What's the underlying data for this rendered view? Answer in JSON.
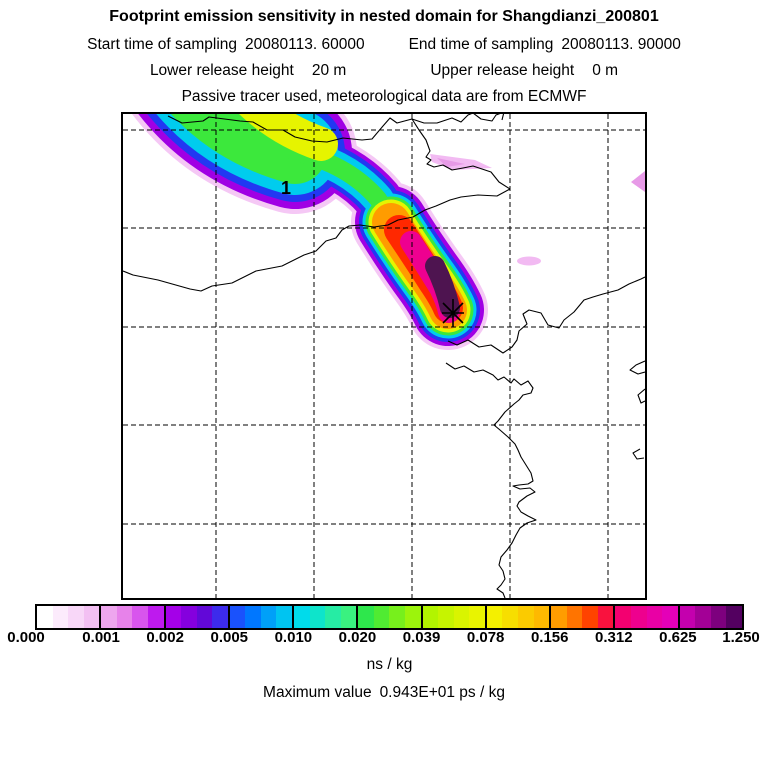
{
  "header": {
    "title": "Footprint emission sensitivity in nested domain for Shangdianzi_200801",
    "sampling": {
      "start_label": "Start time of sampling",
      "start_value": "20080113. 60000",
      "end_label": "End time of sampling",
      "end_value": "20080113. 90000"
    },
    "release": {
      "lower_label": "Lower release height",
      "lower_value": "20 m",
      "upper_label": "Upper release height",
      "upper_value": "0 m"
    },
    "tracer_note": "Passive tracer used, meteorological data are from ECMWF"
  },
  "map": {
    "release_point_label": "1"
  },
  "colorbar": {
    "tick_labels": [
      "0.000",
      "0.001",
      "0.002",
      "0.005",
      "0.010",
      "0.020",
      "0.039",
      "0.078",
      "0.156",
      "0.312",
      "0.625",
      "1.250"
    ],
    "units": "ns / kg",
    "cells": [
      "#FFFFFF",
      "#FCEBFC",
      "#F8D7F8",
      "#F3C0F3",
      "#EEA6EE",
      "#E782EA",
      "#D855ED",
      "#BE1AEE",
      "#A400E8",
      "#8500DE",
      "#6208D8",
      "#3D2BEC",
      "#1A52FC",
      "#0077FF",
      "#00A0F8",
      "#00C4F1",
      "#00DBEB",
      "#0EE4CB",
      "#26ECA4",
      "#3AF180",
      "#2EE74C",
      "#50EB32",
      "#77F01C",
      "#9CF40C",
      "#B2F400",
      "#C6F400",
      "#D9F400",
      "#E9F400",
      "#F4F000",
      "#F7DE00",
      "#FBCB00",
      "#FEB900",
      "#FF9D00",
      "#FF7400",
      "#FF4300",
      "#F9123E",
      "#F30070",
      "#EE008E",
      "#E900A5",
      "#E400B8",
      "#C400AE",
      "#A30096",
      "#7D007E",
      "#530060"
    ]
  },
  "footer": {
    "max_label": "Maximum value",
    "max_value": "0.943E+01 ps / kg"
  },
  "map_colors": {
    "fringe": "#F5C8F5",
    "purple": "#A000E4",
    "blue": "#2238F2",
    "cyan": "#00CCEE",
    "green": "#3CE83C",
    "yellow": "#E6F400",
    "orange": "#FF9C00",
    "red": "#FF2800",
    "magenta": "#EE0090",
    "core": "#4E1450",
    "patch_pink": "#F2BAF2",
    "patch_pink_dark": "#E79AE7"
  },
  "chart_data": {
    "type": "heatmap",
    "title": "Footprint emission sensitivity in nested domain for Shangdianzi_200801",
    "station": "Shangdianzi_200801",
    "sampling_start": "20080113. 60000",
    "sampling_end": "20080113. 90000",
    "lower_release_height": "20 m",
    "upper_release_height": "0 m",
    "meteorology_note": "Passive tracer used, meteorological data are from ECMWF",
    "colorbar_tick_values": [
      0.0,
      0.001,
      0.002,
      0.005,
      0.01,
      0.02,
      0.039,
      0.078,
      0.156,
      0.312,
      0.625,
      1.25
    ],
    "units": "ns / kg",
    "maximum_value": "0.943E+01 ps / kg",
    "legend_position": "bottom",
    "grid": "dashed graticule, 5 vertical x 5 horizontal lines",
    "features": [
      "emission sensitivity plume extending from northwest corner to receptor in map center",
      "receptor marked with black asterisk star",
      "release point labeled 1",
      "coastlines and borders of NE China / Bohai Sea region"
    ]
  }
}
